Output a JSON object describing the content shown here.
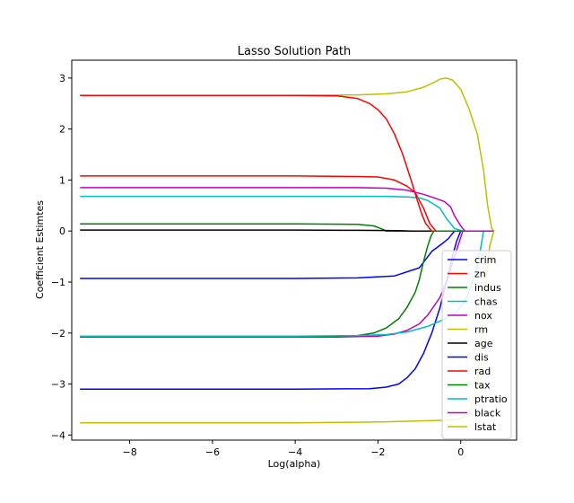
{
  "chart_data": {
    "type": "line",
    "title": "Lasso Solution Path",
    "xlabel": "Log(alpha)",
    "ylabel": "Coefficient Estimtes",
    "xlim": [
      -9.4,
      1.35
    ],
    "ylim": [
      -4.1,
      3.35
    ],
    "xticks": [
      -8,
      -6,
      -4,
      -2,
      0
    ],
    "xtick_labels": [
      "−8",
      "−6",
      "−4",
      "−2",
      "0"
    ],
    "yticks": [
      -4,
      -3,
      -2,
      -1,
      0,
      1,
      2,
      3
    ],
    "ytick_labels": [
      "−4",
      "−3",
      "−2",
      "−1",
      "0",
      "1",
      "2",
      "3"
    ],
    "grid": false,
    "legend_position": "lower-right",
    "series": [
      {
        "name": "crim",
        "color": "#0000ff",
        "x": [
          -9.2,
          -4,
          -2.5,
          -1.6,
          -1.0,
          -0.7,
          -0.45,
          -0.3,
          -0.15,
          0.8
        ],
        "y": [
          -0.93,
          -0.93,
          -0.92,
          -0.88,
          -0.72,
          -0.4,
          -0.25,
          -0.15,
          0,
          0
        ]
      },
      {
        "name": "zn",
        "color": "#ff0000",
        "x": [
          -9.2,
          -4,
          -2.5,
          -2.0,
          -1.6,
          -1.3,
          -1.1,
          -0.9,
          -0.75,
          -0.6,
          0.8
        ],
        "y": [
          1.08,
          1.08,
          1.07,
          1.06,
          1.0,
          0.88,
          0.75,
          0.45,
          0.15,
          0,
          0
        ]
      },
      {
        "name": "indus",
        "color": "#008000",
        "x": [
          -9.2,
          -4,
          -2.5,
          -2.1,
          -1.9,
          -1.8,
          0.8
        ],
        "y": [
          0.14,
          0.14,
          0.13,
          0.1,
          0.04,
          0,
          0
        ]
      },
      {
        "name": "chas",
        "color": "#00bfbf",
        "x": [
          -9.2,
          -4,
          -2.5,
          -1.8,
          -1.3,
          -1.0,
          -0.8,
          -0.5,
          -0.35,
          -0.15,
          0.05,
          0.8
        ],
        "y": [
          0.68,
          0.68,
          0.68,
          0.68,
          0.67,
          0.65,
          0.6,
          0.45,
          0.25,
          0.05,
          0,
          0
        ]
      },
      {
        "name": "nox",
        "color": "#bf00bf",
        "x": [
          -9.2,
          -3,
          -2.0,
          -1.6,
          -1.3,
          -1.0,
          -0.8,
          -0.5,
          -0.3,
          -0.15,
          0.05,
          0.8
        ],
        "y": [
          -2.08,
          -2.08,
          -2.06,
          -2.02,
          -1.95,
          -1.82,
          -1.65,
          -1.3,
          -0.9,
          -0.5,
          0,
          0
        ]
      },
      {
        "name": "rm",
        "color": "#bfbf00",
        "x": [
          -9.2,
          -4,
          -2.5,
          -1.8,
          -1.3,
          -0.9,
          -0.6,
          -0.5,
          -0.35,
          -0.2,
          0.0,
          0.2,
          0.4,
          0.55,
          0.65,
          0.75,
          0.8
        ],
        "y": [
          2.66,
          2.66,
          2.67,
          2.69,
          2.73,
          2.82,
          2.93,
          2.98,
          3.0,
          2.96,
          2.78,
          2.4,
          1.9,
          1.2,
          0.5,
          0.05,
          0
        ]
      },
      {
        "name": "age",
        "color": "#000000",
        "x": [
          -9.2,
          -4,
          -2.5,
          -1.8,
          -1.4,
          -1.2,
          0.8
        ],
        "y": [
          0.02,
          0.02,
          0.015,
          0.01,
          0.005,
          0,
          0
        ]
      },
      {
        "name": "dis",
        "color": "#0000ff",
        "x": [
          -9.2,
          -4,
          -2.2,
          -1.8,
          -1.5,
          -1.3,
          -1.1,
          -0.9,
          -0.7,
          -0.5,
          -0.35,
          -0.2,
          -0.1,
          0.0,
          0.8
        ],
        "y": [
          -3.1,
          -3.1,
          -3.09,
          -3.06,
          -3.0,
          -2.88,
          -2.7,
          -2.4,
          -2.0,
          -1.5,
          -1.0,
          -0.5,
          -0.2,
          0,
          0
        ]
      },
      {
        "name": "rad",
        "color": "#ff0000",
        "x": [
          -9.2,
          -4,
          -3.0,
          -2.5,
          -2.2,
          -2.0,
          -1.8,
          -1.6,
          -1.4,
          -1.2,
          -1.05,
          -0.95,
          -0.85,
          -0.7,
          0.8
        ],
        "y": [
          2.66,
          2.66,
          2.65,
          2.6,
          2.5,
          2.38,
          2.2,
          1.9,
          1.5,
          1.0,
          0.6,
          0.35,
          0.15,
          0,
          0
        ]
      },
      {
        "name": "tax",
        "color": "#008000",
        "x": [
          -9.2,
          -4,
          -3.0,
          -2.5,
          -2.1,
          -1.8,
          -1.5,
          -1.3,
          -1.1,
          -1.0,
          -0.9,
          -0.8,
          -0.72,
          -0.65,
          0.8
        ],
        "y": [
          -2.06,
          -2.06,
          -2.06,
          -2.05,
          -2.0,
          -1.9,
          -1.72,
          -1.5,
          -1.2,
          -0.95,
          -0.6,
          -0.3,
          -0.1,
          0,
          0
        ]
      },
      {
        "name": "ptratio",
        "color": "#00bfbf",
        "x": [
          -9.2,
          -4,
          -2.5,
          -1.8,
          -1.3,
          -0.8,
          -0.4,
          -0.1,
          0.15,
          0.4,
          0.5,
          0.55,
          0.8
        ],
        "y": [
          -2.06,
          -2.06,
          -2.05,
          -2.03,
          -1.98,
          -1.87,
          -1.73,
          -1.6,
          -1.3,
          -0.7,
          -0.25,
          0,
          0
        ]
      },
      {
        "name": "black",
        "color": "#bf00bf",
        "x": [
          -9.2,
          -4,
          -2.5,
          -1.8,
          -1.3,
          -0.9,
          -0.6,
          -0.4,
          -0.25,
          -0.15,
          0.0,
          0.1,
          0.8
        ],
        "y": [
          0.85,
          0.85,
          0.85,
          0.84,
          0.8,
          0.72,
          0.64,
          0.58,
          0.48,
          0.3,
          0.1,
          0,
          0
        ]
      },
      {
        "name": "lstat",
        "color": "#bfbf00",
        "x": [
          -9.2,
          -4,
          -2.5,
          -1.8,
          -1.3,
          -0.8,
          -0.4,
          -0.1,
          0.2,
          0.4,
          0.55,
          0.7,
          0.8
        ],
        "y": [
          -3.76,
          -3.76,
          -3.75,
          -3.74,
          -3.73,
          -3.72,
          -3.71,
          -3.7,
          -3.6,
          -3.0,
          -1.5,
          -0.3,
          0
        ]
      }
    ]
  }
}
